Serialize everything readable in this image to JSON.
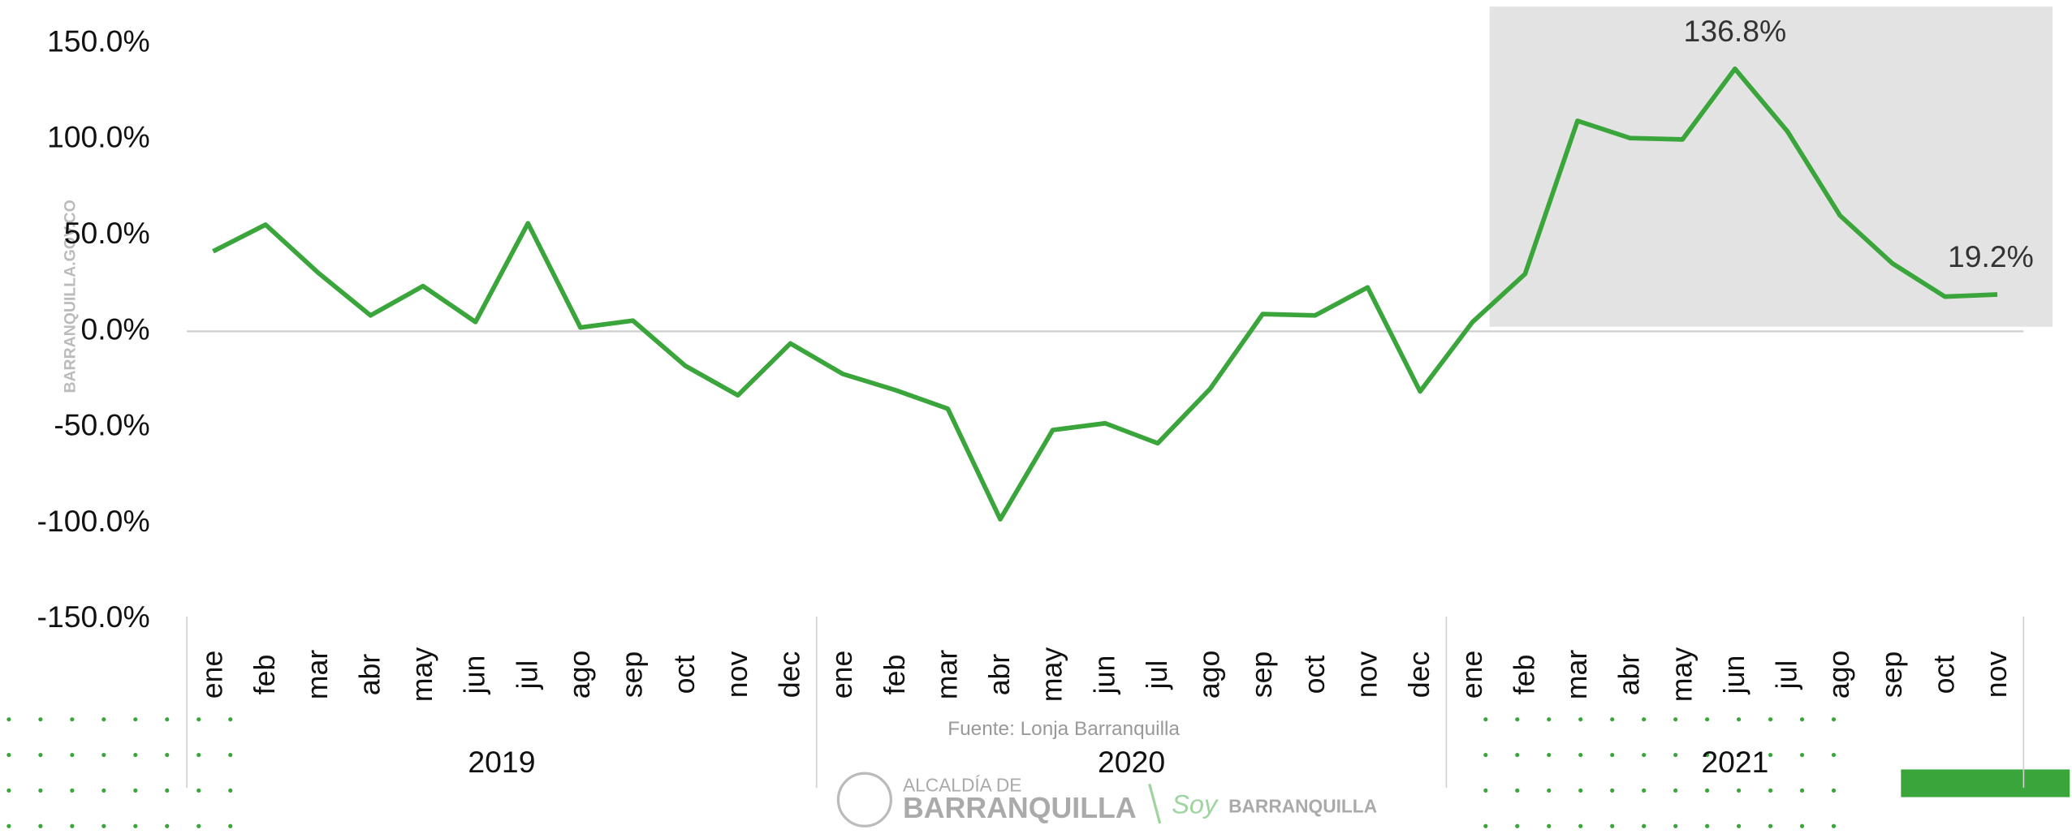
{
  "chart_data": {
    "type": "line",
    "categories": [
      "ene",
      "feb",
      "mar",
      "abr",
      "may",
      "jun",
      "jul",
      "ago",
      "sep",
      "oct",
      "nov",
      "dec",
      "ene",
      "feb",
      "mar",
      "abr",
      "may",
      "jun",
      "jul",
      "ago",
      "sep",
      "oct",
      "nov",
      "dec",
      "ene",
      "feb",
      "mar",
      "abr",
      "may",
      "jun",
      "jul",
      "ago",
      "sep",
      "oct",
      "nov"
    ],
    "groups": [
      "2019",
      "2020",
      "2021"
    ],
    "values": [
      41.7,
      55.6,
      30.6,
      8.3,
      23.6,
      4.9,
      56.3,
      2,
      5.6,
      -18,
      -33.3,
      -6.3,
      -22.2,
      -30.6,
      -40.3,
      -97.9,
      -51.4,
      -47.9,
      -58.3,
      -29.9,
      9,
      8.3,
      22.9,
      -31.3,
      4.9,
      29.9,
      109.7,
      100.7,
      100,
      136.8,
      104.2,
      60.4,
      35.4,
      18.1,
      19.2
    ],
    "value_labels": [
      null,
      null,
      null,
      null,
      null,
      null,
      null,
      null,
      null,
      null,
      null,
      null,
      null,
      null,
      null,
      null,
      null,
      null,
      null,
      null,
      null,
      null,
      null,
      null,
      null,
      null,
      null,
      null,
      null,
      "136.8%",
      null,
      null,
      null,
      null,
      "19.2%"
    ],
    "color": "#3aa53a",
    "ylim": [
      -150,
      150
    ],
    "yticks": [
      {
        "value": -150,
        "label": "-150.0%"
      },
      {
        "value": -100,
        "label": "-100.0%"
      },
      {
        "value": -50,
        "label": "-50.0%"
      },
      {
        "value": 0,
        "label": "0.0%"
      },
      {
        "value": 50,
        "label": "50.0%"
      },
      {
        "value": 100,
        "label": "100.0%"
      },
      {
        "value": 150,
        "label": "150.0%"
      }
    ],
    "source": "Fuente: Lonja Barranquilla",
    "watermark": "BARRANQUILLA.GOV.CO",
    "logo": {
      "line1": "ALCALDÍA DE",
      "line2": "BARRANQUILLA",
      "slogan": "Soy",
      "brand": "BARRANQUILLA"
    }
  }
}
